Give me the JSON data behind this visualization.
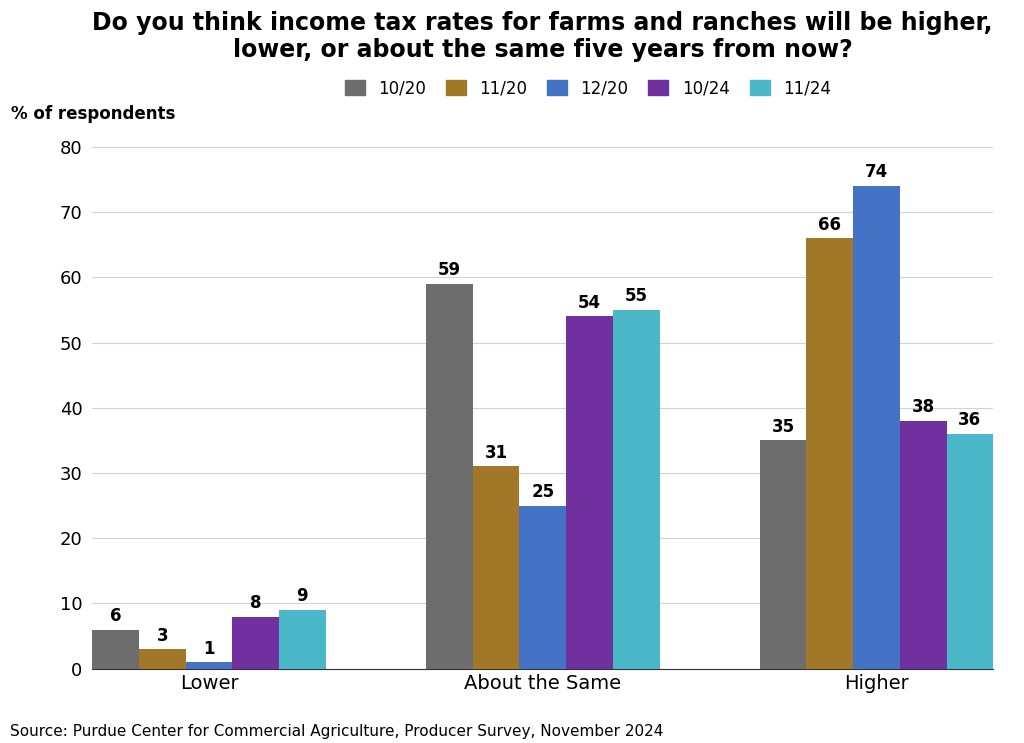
{
  "title": "Do you think income tax rates for farms and ranches will be higher,\nlower, or about the same five years from now?",
  "ylabel": "% of respondents",
  "source": "Source: Purdue Center for Commercial Agriculture, Producer Survey, November 2024",
  "categories": [
    "Lower",
    "About the Same",
    "Higher"
  ],
  "series": [
    {
      "label": "10/20",
      "color": "#6d6d6d",
      "values": [
        6,
        59,
        35
      ]
    },
    {
      "label": "11/20",
      "color": "#a07828",
      "values": [
        3,
        31,
        66
      ]
    },
    {
      "label": "12/20",
      "color": "#4472c4",
      "values": [
        1,
        25,
        74
      ]
    },
    {
      "label": "10/24",
      "color": "#7030a0",
      "values": [
        8,
        54,
        38
      ]
    },
    {
      "label": "11/24",
      "color": "#4ab8c8",
      "values": [
        9,
        55,
        36
      ]
    }
  ],
  "ylim": [
    0,
    82
  ],
  "yticks": [
    0,
    10,
    20,
    30,
    40,
    50,
    60,
    70,
    80
  ],
  "bar_width": 0.14,
  "group_positions": [
    0.3,
    1.3,
    2.3
  ],
  "title_fontsize": 17,
  "label_fontsize": 12,
  "tick_fontsize": 13,
  "legend_fontsize": 12,
  "source_fontsize": 11,
  "background_color": "#ffffff"
}
